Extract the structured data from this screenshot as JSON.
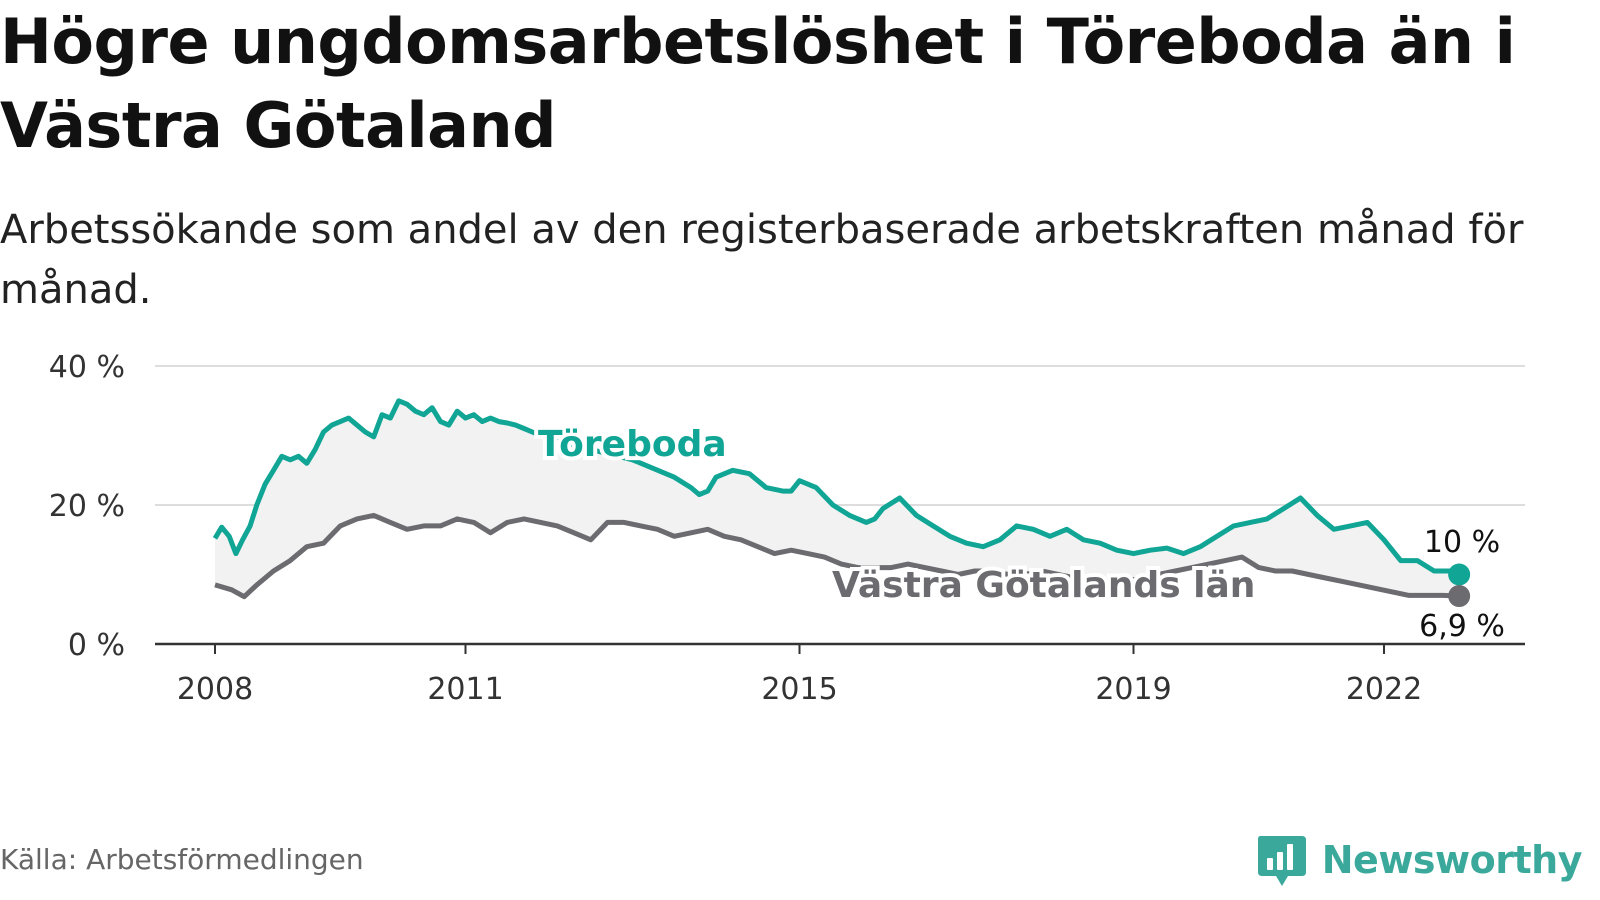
{
  "header": {
    "title": "Högre ungdomsarbetslöshet i Töreboda än i Västra Götaland",
    "subtitle": "Arbetssökande som andel av den registerbaserade arbetskraften månad för månad."
  },
  "footer": {
    "source": "Källa: Arbetsförmedlingen",
    "brand": "Newsworthy"
  },
  "colors": {
    "toreboda": "#10a595",
    "vastra": "#6b6b70",
    "fill": "#f2f2f2",
    "grid": "#dddddd",
    "axis": "#333333"
  },
  "chart_data": {
    "type": "line",
    "title": "Högre ungdomsarbetslöshet i Töreboda än i Västra Götaland",
    "xlabel": "",
    "ylabel": "",
    "ylim": [
      0,
      40
    ],
    "xlim": [
      2007.5,
      2023.5
    ],
    "y_ticks": [
      0,
      20,
      40
    ],
    "y_tick_labels": [
      "0 %",
      "20 %",
      "40 %"
    ],
    "x_ticks": [
      2008,
      2011,
      2015,
      2019,
      2022
    ],
    "x_tick_labels": [
      "2008",
      "2011",
      "2015",
      "2019",
      "2022"
    ],
    "grid": true,
    "fill_between": true,
    "series": [
      {
        "name": "Töreboda",
        "x": [
          2008.0,
          2008.08,
          2008.17,
          2008.25,
          2008.33,
          2008.42,
          2008.5,
          2008.6,
          2008.7,
          2008.8,
          2008.9,
          2009.0,
          2009.1,
          2009.2,
          2009.3,
          2009.4,
          2009.5,
          2009.6,
          2009.7,
          2009.8,
          2009.9,
          2010.0,
          2010.1,
          2010.2,
          2010.3,
          2010.4,
          2010.5,
          2010.6,
          2010.7,
          2010.8,
          2010.9,
          2011.0,
          2011.1,
          2011.2,
          2011.3,
          2011.4,
          2011.5,
          2011.6,
          2011.7,
          2011.8,
          2011.9,
          2012.0,
          2012.5,
          2013.0,
          2013.5,
          2013.7,
          2013.8,
          2013.9,
          2014.0,
          2014.2,
          2014.4,
          2014.6,
          2014.8,
          2014.9,
          2015.0,
          2015.2,
          2015.4,
          2015.6,
          2015.8,
          2015.9,
          2016.0,
          2016.2,
          2016.4,
          2016.6,
          2016.8,
          2017.0,
          2017.2,
          2017.4,
          2017.6,
          2017.8,
          2018.0,
          2018.2,
          2018.4,
          2018.6,
          2018.8,
          2019.0,
          2019.2,
          2019.4,
          2019.6,
          2019.8,
          2020.0,
          2020.2,
          2020.4,
          2020.6,
          2020.8,
          2021.0,
          2021.2,
          2021.4,
          2021.6,
          2021.8,
          2022.0,
          2022.2,
          2022.4,
          2022.6,
          2022.8,
          2022.9
        ],
        "values": [
          15.2,
          16.8,
          15.5,
          13.0,
          15.0,
          17.0,
          20.0,
          23.0,
          25.0,
          27.0,
          26.5,
          27.0,
          26.0,
          28.0,
          30.5,
          31.5,
          32.0,
          32.5,
          31.5,
          30.5,
          29.8,
          33.0,
          32.5,
          35.0,
          34.5,
          33.5,
          33.0,
          34.0,
          32.0,
          31.5,
          33.5,
          32.5,
          33.0,
          32.0,
          32.5,
          32.0,
          31.8,
          31.5,
          31.0,
          30.5,
          30.0,
          29.5,
          28.0,
          26.5,
          24.0,
          22.5,
          21.5,
          22.0,
          24.0,
          25.0,
          24.5,
          22.5,
          22.0,
          22.0,
          23.5,
          22.5,
          20.0,
          18.5,
          17.5,
          18.0,
          19.5,
          21.0,
          18.5,
          17.0,
          15.5,
          14.5,
          14.0,
          15.0,
          17.0,
          16.5,
          15.5,
          16.5,
          15.0,
          14.5,
          13.5,
          13.0,
          13.5,
          13.8,
          13.0,
          14.0,
          15.5,
          17.0,
          17.5,
          18.0,
          19.5,
          21.0,
          18.5,
          16.5,
          17.0,
          17.5,
          15.0,
          12.0,
          12.0,
          10.5,
          10.5,
          10.0
        ]
      },
      {
        "name": "Västra Götalands län",
        "x": [
          2008.0,
          2008.2,
          2008.35,
          2008.5,
          2008.7,
          2008.9,
          2009.1,
          2009.3,
          2009.5,
          2009.7,
          2009.9,
          2010.1,
          2010.3,
          2010.5,
          2010.7,
          2010.9,
          2011.1,
          2011.3,
          2011.5,
          2011.7,
          2011.9,
          2012.1,
          2012.3,
          2012.5,
          2012.7,
          2012.9,
          2013.1,
          2013.3,
          2013.5,
          2013.7,
          2013.9,
          2014.1,
          2014.3,
          2014.5,
          2014.7,
          2014.9,
          2015.1,
          2015.3,
          2015.5,
          2015.7,
          2015.9,
          2016.1,
          2016.3,
          2016.5,
          2016.7,
          2016.9,
          2017.1,
          2017.3,
          2017.5,
          2017.7,
          2017.9,
          2018.1,
          2018.3,
          2018.5,
          2018.7,
          2018.9,
          2019.1,
          2019.3,
          2019.5,
          2019.7,
          2019.9,
          2020.1,
          2020.3,
          2020.5,
          2020.7,
          2020.9,
          2021.1,
          2021.3,
          2021.5,
          2021.7,
          2021.9,
          2022.1,
          2022.3,
          2022.5,
          2022.7,
          2022.9
        ],
        "values": [
          8.5,
          7.8,
          6.8,
          8.5,
          10.5,
          12.0,
          14.0,
          14.5,
          17.0,
          18.0,
          18.5,
          17.5,
          16.5,
          17.0,
          17.0,
          18.0,
          17.5,
          16.0,
          17.5,
          18.0,
          17.5,
          17.0,
          16.0,
          15.0,
          17.5,
          17.5,
          17.0,
          16.5,
          15.5,
          16.0,
          16.5,
          15.5,
          15.0,
          14.0,
          13.0,
          13.5,
          13.0,
          12.5,
          11.5,
          11.0,
          11.0,
          11.0,
          11.5,
          11.0,
          10.5,
          10.0,
          10.5,
          10.5,
          10.0,
          10.0,
          10.5,
          10.0,
          9.5,
          9.5,
          9.0,
          9.0,
          9.5,
          10.0,
          10.5,
          11.0,
          11.5,
          12.0,
          12.5,
          11.0,
          10.5,
          10.5,
          10.0,
          9.5,
          9.0,
          8.5,
          8.0,
          7.5,
          7.0,
          7.0,
          7.0,
          6.9
        ]
      }
    ],
    "series_labels": [
      "Töreboda",
      "Västra Götalands län"
    ],
    "end_labels": [
      "10 %",
      "6,9 %"
    ]
  }
}
